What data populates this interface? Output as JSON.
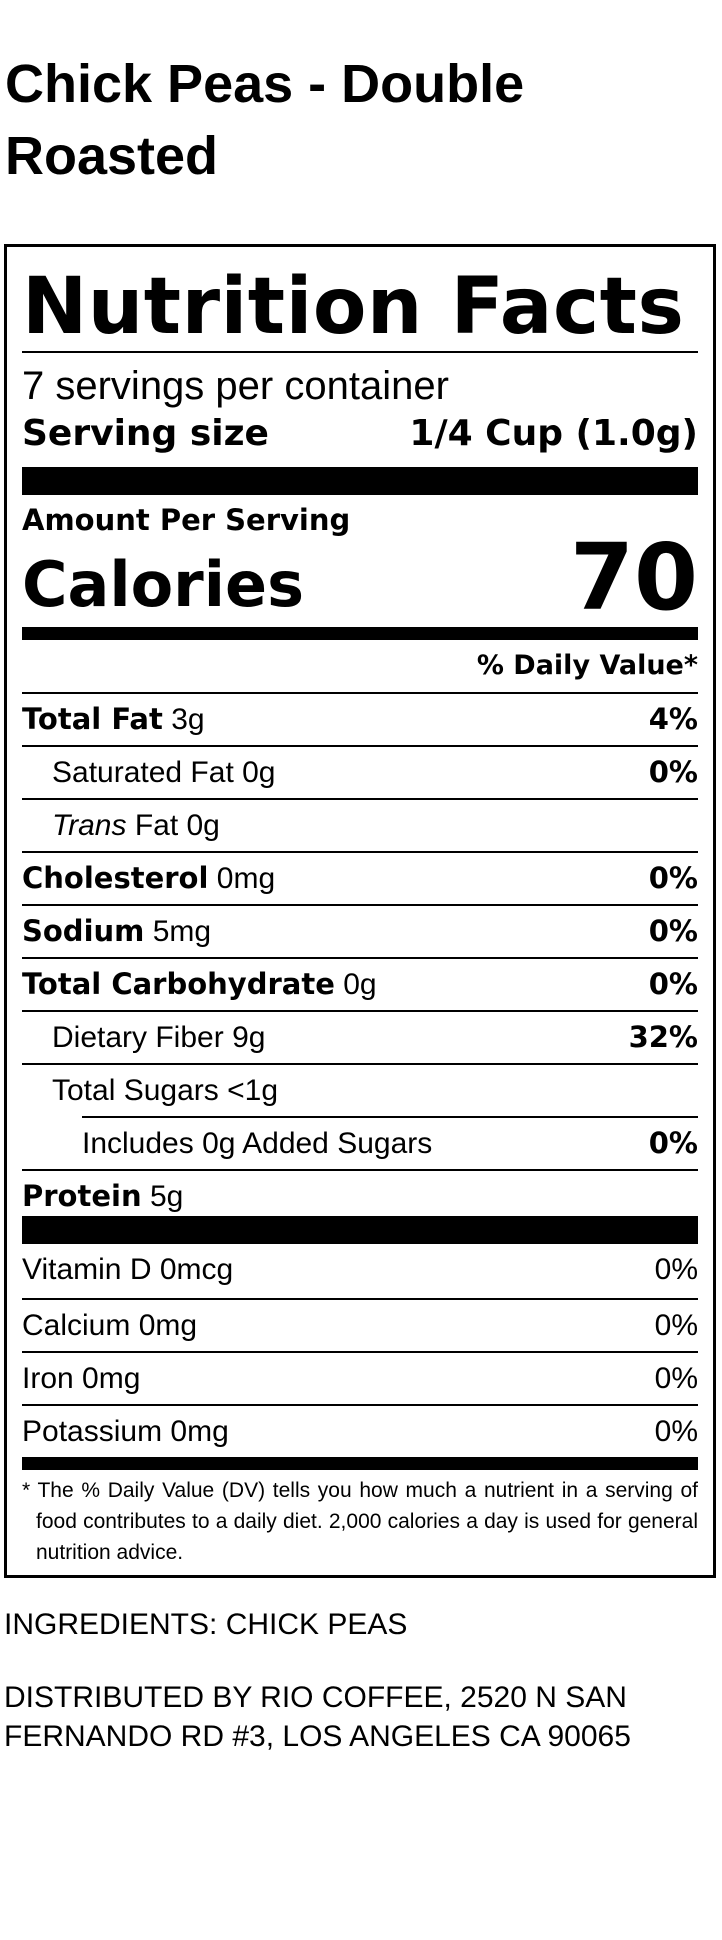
{
  "product": {
    "name_line1": "Chick Peas - Double",
    "name_line2": "Roasted"
  },
  "label": {
    "title": "Nutrition Facts",
    "servings_per_container": "7 servings per container",
    "serving_size_label": "Serving size",
    "serving_size_value": "1/4 Cup (1.0g)",
    "amount_per_serving": "Amount Per Serving",
    "calories_label": "Calories",
    "calories_value": "70",
    "daily_value_header": "% Daily Value*",
    "nutrients": [
      {
        "name": "Total Fat",
        "amount": "3g",
        "pct": "4%"
      },
      {
        "name": "Saturated Fat",
        "amount": "0g",
        "pct": "0%"
      },
      {
        "name": "Trans",
        "amount": "Fat 0g"
      },
      {
        "name": "Cholesterol",
        "amount": "0mg",
        "pct": "0%"
      },
      {
        "name": "Sodium",
        "amount": "5mg",
        "pct": "0%"
      },
      {
        "name": "Total Carbohydrate",
        "amount": "0g",
        "pct": "0%"
      },
      {
        "name": "Dietary Fiber",
        "amount": "9g",
        "pct": "32%"
      },
      {
        "name": "Total Sugars",
        "amount": "<1g"
      },
      {
        "name": "Includes 0g Added Sugars",
        "pct": "0%"
      },
      {
        "name": "Protein",
        "amount": "5g"
      }
    ],
    "vitamins": [
      {
        "name": "Vitamin D",
        "amount": "0mcg",
        "pct": "0%"
      },
      {
        "name": "Calcium",
        "amount": "0mg",
        "pct": "0%"
      },
      {
        "name": "Iron",
        "amount": "0mg",
        "pct": "0%"
      },
      {
        "name": "Potassium",
        "amount": "0mg",
        "pct": "0%"
      }
    ],
    "footnote": "* The % Daily Value (DV) tells you how much a nutrient in a serving of food contributes to a daily diet. 2,000 calories a day is used for general nutrition advice."
  },
  "ingredients": "INGREDIENTS: CHICK PEAS",
  "distributed_by": "DISTRIBUTED BY RIO COFFEE, 2520 N SAN FERNANDO RD #3, LOS ANGELES CA 90065"
}
